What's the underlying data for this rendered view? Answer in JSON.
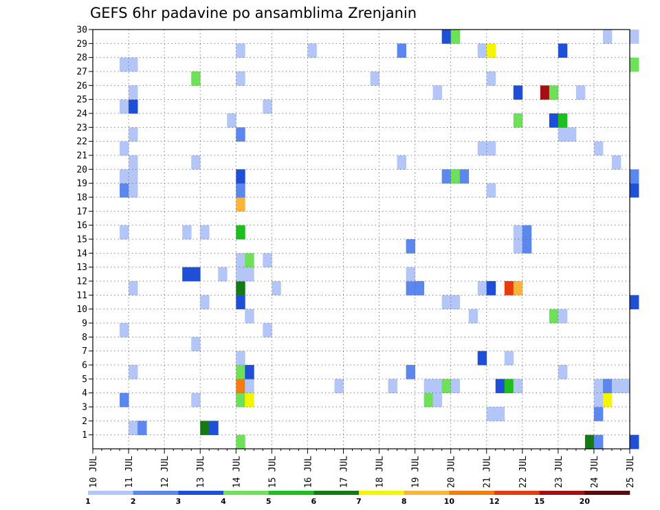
{
  "chart_data": {
    "type": "heatmap",
    "title": "GEFS 6hr padavine po ansamblima Zrenjanin",
    "xlabel": "",
    "ylabel": "",
    "x_ticks": [
      "10 JUL",
      "11 JUL",
      "12 JUL",
      "13 JUL",
      "14 JUL",
      "15 JUL",
      "16 JUL",
      "17 JUL",
      "18 JUL",
      "19 JUL",
      "20 JUL",
      "21 JUL",
      "22 JUL",
      "23 JUL",
      "24 JUL",
      "25 JUL"
    ],
    "xlim": [
      "10 JUL 00",
      "25 JUL 00"
    ],
    "y_ticks": [
      1,
      2,
      3,
      4,
      5,
      6,
      7,
      8,
      9,
      10,
      11,
      12,
      13,
      14,
      15,
      16,
      17,
      18,
      19,
      20,
      21,
      22,
      23,
      24,
      25,
      26,
      27,
      28,
      29,
      30
    ],
    "ylim": [
      0,
      30
    ],
    "grid": true,
    "legend": "colorbar-bottom",
    "colorbar": {
      "labels": [
        "1",
        "2",
        "3",
        "4",
        "5",
        "6",
        "7",
        "8",
        "10",
        "12",
        "15",
        "20"
      ],
      "colors": [
        "#b3c6f7",
        "#5b87ef",
        "#1f4fd6",
        "#6fe05a",
        "#1cbf1c",
        "#147a14",
        "#f5f500",
        "#fab43c",
        "#f57d10",
        "#e63c0f",
        "#a50f0f",
        "#5a0a0a"
      ]
    },
    "cells": [
      {
        "t": "11 JUL 00",
        "m": 1,
        "c": 1
      },
      {
        "t": "11 JUL 06",
        "m": 1,
        "c": 2
      },
      {
        "t": "13 JUL 00",
        "m": 1,
        "c": 6
      },
      {
        "t": "13 JUL 06",
        "m": 1,
        "c": 3
      },
      {
        "t": "14 JUL 00",
        "m": 0,
        "c": 4
      },
      {
        "t": "21 JUL 00",
        "m": 2,
        "c": 1
      },
      {
        "t": "21 JUL 06",
        "m": 2,
        "c": 1
      },
      {
        "t": "24 JUL 00",
        "m": 2,
        "c": 2
      },
      {
        "t": "23 JUL 18",
        "m": 0,
        "c": 6
      },
      {
        "t": "24 JUL 00",
        "m": 0,
        "c": 2
      },
      {
        "t": "25 JUL 00",
        "m": 0,
        "c": 3
      },
      {
        "t": "19 JUL 18",
        "m": 29,
        "c": 3
      },
      {
        "t": "20 JUL 00",
        "m": 29,
        "c": 4
      },
      {
        "t": "24 JUL 06",
        "m": 29,
        "c": 1
      },
      {
        "t": "25 JUL 00",
        "m": 29,
        "c": 1
      },
      {
        "t": "10 JUL 18",
        "m": 3,
        "c": 2
      },
      {
        "t": "12 JUL 18",
        "m": 3,
        "c": 1
      },
      {
        "t": "14 JUL 00",
        "m": 3,
        "c": 4
      },
      {
        "t": "14 JUL 06",
        "m": 3,
        "c": 7
      },
      {
        "t": "19 JUL 06",
        "m": 3,
        "c": 4
      },
      {
        "t": "19 JUL 12",
        "m": 3,
        "c": 1
      },
      {
        "t": "24 JUL 00",
        "m": 3,
        "c": 1
      },
      {
        "t": "24 JUL 06",
        "m": 3,
        "c": 7
      },
      {
        "t": "14 JUL 00",
        "m": 4,
        "c": 9
      },
      {
        "t": "14 JUL 06",
        "m": 4,
        "c": 1
      },
      {
        "t": "16 JUL 18",
        "m": 4,
        "c": 1
      },
      {
        "t": "18 JUL 06",
        "m": 4,
        "c": 1
      },
      {
        "t": "19 JUL 06",
        "m": 4,
        "c": 1
      },
      {
        "t": "19 JUL 12",
        "m": 4,
        "c": 1
      },
      {
        "t": "19 JUL 18",
        "m": 4,
        "c": 4
      },
      {
        "t": "20 JUL 00",
        "m": 4,
        "c": 1
      },
      {
        "t": "21 JUL 06",
        "m": 4,
        "c": 3
      },
      {
        "t": "21 JUL 12",
        "m": 4,
        "c": 5
      },
      {
        "t": "21 JUL 18",
        "m": 4,
        "c": 1
      },
      {
        "t": "24 JUL 00",
        "m": 4,
        "c": 1
      },
      {
        "t": "24 JUL 06",
        "m": 4,
        "c": 2
      },
      {
        "t": "24 JUL 12",
        "m": 4,
        "c": 1
      },
      {
        "t": "24 JUL 18",
        "m": 4,
        "c": 1
      },
      {
        "t": "11 JUL 00",
        "m": 5,
        "c": 1
      },
      {
        "t": "14 JUL 00",
        "m": 5,
        "c": 4
      },
      {
        "t": "14 JUL 06",
        "m": 5,
        "c": 3
      },
      {
        "t": "18 JUL 18",
        "m": 5,
        "c": 2
      },
      {
        "t": "23 JUL 00",
        "m": 5,
        "c": 1
      },
      {
        "t": "14 JUL 00",
        "m": 6,
        "c": 1
      },
      {
        "t": "20 JUL 18",
        "m": 6,
        "c": 3
      },
      {
        "t": "21 JUL 12",
        "m": 6,
        "c": 1
      },
      {
        "t": "12 JUL 18",
        "m": 7,
        "c": 1
      },
      {
        "t": "10 JUL 18",
        "m": 8,
        "c": 1
      },
      {
        "t": "14 JUL 18",
        "m": 8,
        "c": 1
      },
      {
        "t": "14 JUL 06",
        "m": 9,
        "c": 1
      },
      {
        "t": "20 JUL 12",
        "m": 9,
        "c": 1
      },
      {
        "t": "22 JUL 18",
        "m": 9,
        "c": 4
      },
      {
        "t": "23 JUL 00",
        "m": 9,
        "c": 1
      },
      {
        "t": "13 JUL 00",
        "m": 10,
        "c": 1
      },
      {
        "t": "14 JUL 00",
        "m": 10,
        "c": 3
      },
      {
        "t": "19 JUL 18",
        "m": 10,
        "c": 1
      },
      {
        "t": "20 JUL 00",
        "m": 10,
        "c": 1
      },
      {
        "t": "25 JUL 00",
        "m": 10,
        "c": 3
      },
      {
        "t": "11 JUL 00",
        "m": 11,
        "c": 1
      },
      {
        "t": "14 JUL 00",
        "m": 11,
        "c": 6
      },
      {
        "t": "15 JUL 00",
        "m": 11,
        "c": 1
      },
      {
        "t": "18 JUL 18",
        "m": 11,
        "c": 2
      },
      {
        "t": "19 JUL 00",
        "m": 11,
        "c": 2
      },
      {
        "t": "20 JUL 18",
        "m": 11,
        "c": 1
      },
      {
        "t": "21 JUL 00",
        "m": 11,
        "c": 3
      },
      {
        "t": "21 JUL 12",
        "m": 11,
        "c": 10
      },
      {
        "t": "21 JUL 18",
        "m": 11,
        "c": 8
      },
      {
        "t": "12 JUL 12",
        "m": 12,
        "c": 3
      },
      {
        "t": "12 JUL 18",
        "m": 12,
        "c": 3
      },
      {
        "t": "13 JUL 12",
        "m": 12,
        "c": 1
      },
      {
        "t": "14 JUL 00",
        "m": 12,
        "c": 1
      },
      {
        "t": "14 JUL 06",
        "m": 12,
        "c": 1
      },
      {
        "t": "18 JUL 18",
        "m": 12,
        "c": 1
      },
      {
        "t": "14 JUL 00",
        "m": 13,
        "c": 1
      },
      {
        "t": "14 JUL 06",
        "m": 13,
        "c": 4
      },
      {
        "t": "14 JUL 18",
        "m": 13,
        "c": 1
      },
      {
        "t": "18 JUL 18",
        "m": 14,
        "c": 2
      },
      {
        "t": "21 JUL 18",
        "m": 14,
        "c": 1
      },
      {
        "t": "22 JUL 00",
        "m": 14,
        "c": 2
      },
      {
        "t": "10 JUL 18",
        "m": 15,
        "c": 1
      },
      {
        "t": "12 JUL 12",
        "m": 15,
        "c": 1
      },
      {
        "t": "13 JUL 00",
        "m": 15,
        "c": 1
      },
      {
        "t": "14 JUL 00",
        "m": 15,
        "c": 5
      },
      {
        "t": "21 JUL 18",
        "m": 15,
        "c": 1
      },
      {
        "t": "22 JUL 00",
        "m": 15,
        "c": 2
      },
      {
        "t": "14 JUL 00",
        "m": 17,
        "c": 8
      },
      {
        "t": "10 JUL 18",
        "m": 18,
        "c": 2
      },
      {
        "t": "11 JUL 00",
        "m": 18,
        "c": 1
      },
      {
        "t": "14 JUL 00",
        "m": 18,
        "c": 2
      },
      {
        "t": "21 JUL 00",
        "m": 18,
        "c": 1
      },
      {
        "t": "25 JUL 00",
        "m": 18,
        "c": 3
      },
      {
        "t": "10 JUL 18",
        "m": 19,
        "c": 1
      },
      {
        "t": "11 JUL 00",
        "m": 19,
        "c": 1
      },
      {
        "t": "14 JUL 00",
        "m": 19,
        "c": 3
      },
      {
        "t": "19 JUL 18",
        "m": 19,
        "c": 2
      },
      {
        "t": "20 JUL 00",
        "m": 19,
        "c": 4
      },
      {
        "t": "20 JUL 06",
        "m": 19,
        "c": 2
      },
      {
        "t": "25 JUL 00",
        "m": 19,
        "c": 2
      },
      {
        "t": "11 JUL 00",
        "m": 20,
        "c": 1
      },
      {
        "t": "12 JUL 18",
        "m": 20,
        "c": 1
      },
      {
        "t": "18 JUL 12",
        "m": 20,
        "c": 1
      },
      {
        "t": "24 JUL 12",
        "m": 20,
        "c": 1
      },
      {
        "t": "10 JUL 18",
        "m": 21,
        "c": 1
      },
      {
        "t": "20 JUL 18",
        "m": 21,
        "c": 1
      },
      {
        "t": "21 JUL 00",
        "m": 21,
        "c": 1
      },
      {
        "t": "24 JUL 00",
        "m": 21,
        "c": 1
      },
      {
        "t": "11 JUL 00",
        "m": 22,
        "c": 1
      },
      {
        "t": "14 JUL 00",
        "m": 22,
        "c": 2
      },
      {
        "t": "23 JUL 00",
        "m": 22,
        "c": 1
      },
      {
        "t": "23 JUL 06",
        "m": 22,
        "c": 1
      },
      {
        "t": "13 JUL 18",
        "m": 23,
        "c": 1
      },
      {
        "t": "21 JUL 18",
        "m": 23,
        "c": 4
      },
      {
        "t": "22 JUL 18",
        "m": 23,
        "c": 3
      },
      {
        "t": "23 JUL 00",
        "m": 23,
        "c": 5
      },
      {
        "t": "10 JUL 18",
        "m": 24,
        "c": 1
      },
      {
        "t": "11 JUL 00",
        "m": 24,
        "c": 3
      },
      {
        "t": "14 JUL 18",
        "m": 24,
        "c": 1
      },
      {
        "t": "11 JUL 00",
        "m": 25,
        "c": 1
      },
      {
        "t": "19 JUL 12",
        "m": 25,
        "c": 1
      },
      {
        "t": "21 JUL 18",
        "m": 25,
        "c": 3
      },
      {
        "t": "22 JUL 12",
        "m": 25,
        "c": 11
      },
      {
        "t": "22 JUL 18",
        "m": 25,
        "c": 4
      },
      {
        "t": "23 JUL 12",
        "m": 25,
        "c": 1
      },
      {
        "t": "12 JUL 18",
        "m": 26,
        "c": 4
      },
      {
        "t": "14 JUL 00",
        "m": 26,
        "c": 1
      },
      {
        "t": "17 JUL 18",
        "m": 26,
        "c": 1
      },
      {
        "t": "21 JUL 00",
        "m": 26,
        "c": 1
      },
      {
        "t": "10 JUL 18",
        "m": 27,
        "c": 1
      },
      {
        "t": "11 JUL 00",
        "m": 27,
        "c": 1
      },
      {
        "t": "25 JUL 00",
        "m": 27,
        "c": 4
      },
      {
        "t": "14 JUL 00",
        "m": 28,
        "c": 1
      },
      {
        "t": "16 JUL 00",
        "m": 28,
        "c": 1
      },
      {
        "t": "18 JUL 12",
        "m": 28,
        "c": 2
      },
      {
        "t": "20 JUL 18",
        "m": 28,
        "c": 1
      },
      {
        "t": "21 JUL 00",
        "m": 28,
        "c": 7
      },
      {
        "t": "23 JUL 00",
        "m": 28,
        "c": 3
      }
    ]
  }
}
